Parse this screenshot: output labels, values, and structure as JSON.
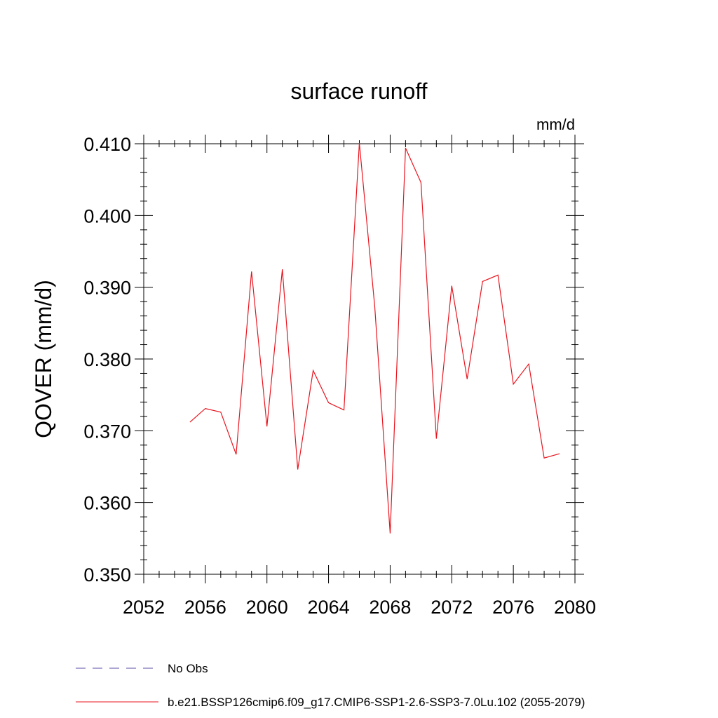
{
  "chart_data": {
    "type": "line",
    "title": "surface runoff",
    "units_label": "mm/d",
    "ylabel": "QOVER  (mm/d)",
    "xlabel": "",
    "xlim": [
      2052,
      2080
    ],
    "ylim": [
      0.35,
      0.41
    ],
    "x_ticks": [
      2052,
      2056,
      2060,
      2064,
      2068,
      2072,
      2076,
      2080
    ],
    "y_ticks": [
      0.35,
      0.36,
      0.37,
      0.38,
      0.39,
      0.4,
      0.41
    ],
    "x_tick_labels": [
      "2052",
      "2056",
      "2060",
      "2064",
      "2068",
      "2072",
      "2076",
      "2080"
    ],
    "y_tick_labels": [
      "0.350",
      "0.360",
      "0.370",
      "0.380",
      "0.390",
      "0.400",
      "0.410"
    ],
    "grid": false,
    "legend_position": "bottom",
    "legend": [
      {
        "label": "No Obs",
        "color": "#5a4ea6",
        "style": "dashed"
      },
      {
        "label": "b.e21.BSSP126cmip6.f09_g17.CMIP6-SSP1-2.6-SSP3-7.0Lu.102 (2055-2079)",
        "color": "#e8141e",
        "style": "solid"
      }
    ],
    "series": [
      {
        "name": "b.e21.BSSP126cmip6.f09_g17.CMIP6-SSP1-2.6-SSP3-7.0Lu.102 (2055-2079)",
        "color": "#e8141e",
        "x": [
          2055,
          2056,
          2057,
          2058,
          2059,
          2060,
          2061,
          2062,
          2063,
          2064,
          2065,
          2066,
          2067,
          2068,
          2069,
          2070,
          2071,
          2072,
          2073,
          2074,
          2075,
          2076,
          2077,
          2078,
          2079
        ],
        "y": [
          0.3712,
          0.3731,
          0.3726,
          0.3667,
          0.3922,
          0.3706,
          0.3925,
          0.3646,
          0.3784,
          0.3739,
          0.3729,
          0.4101,
          0.3873,
          0.3557,
          0.4094,
          0.4046,
          0.3689,
          0.3902,
          0.3772,
          0.3908,
          0.3917,
          0.3765,
          0.3793,
          0.3662,
          0.3668
        ]
      }
    ]
  }
}
